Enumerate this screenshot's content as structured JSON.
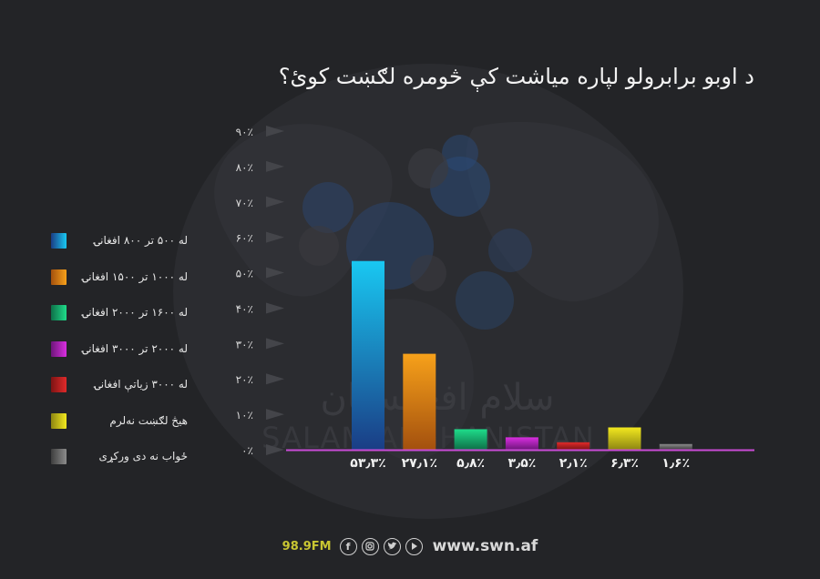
{
  "header": {
    "title": "د اوبو برابرولو لپاره میاشت کې څومره لګښت کوئ؟"
  },
  "watermark": {
    "arabic": "سلام افغانستان",
    "latin": "SALAM AFGHANISTAN"
  },
  "chart_data": {
    "type": "bar",
    "title": "د اوبو برابرولو لپاره میاشت کې څومره لګښت کوئ؟",
    "xlabel": "",
    "ylabel": "",
    "ylim": [
      0,
      90
    ],
    "yticks": [
      {
        "value": 0,
        "label": "۰٪"
      },
      {
        "value": 10,
        "label": "۱۰٪"
      },
      {
        "value": 20,
        "label": "۲۰٪"
      },
      {
        "value": 30,
        "label": "۳۰٪"
      },
      {
        "value": 40,
        "label": "۴۰٪"
      },
      {
        "value": 50,
        "label": "۵۰٪"
      },
      {
        "value": 60,
        "label": "۶۰٪"
      },
      {
        "value": 70,
        "label": "۷۰٪"
      },
      {
        "value": 80,
        "label": "۸۰٪"
      },
      {
        "value": 90,
        "label": "۹۰٪"
      }
    ],
    "grid": false,
    "legend_position": "left",
    "categories": [
      "له ۵۰۰ تر ۸۰۰ افغانۍ",
      "له ۱۰۰۰ تر ۱۵۰۰ افغانۍ",
      "له ۱۶۰۰ تر ۲۰۰۰ افغانۍ",
      "له ۲۰۰۰ تر ۳۰۰۰ افغانۍ",
      "له ۳۰۰۰ زیاتې افغانۍ",
      "هیڅ لګښت نه‌لرم",
      "ځواب نه دی ورکړی"
    ],
    "values": [
      53.3,
      27.1,
      5.8,
      3.5,
      2.1,
      6.3,
      1.6
    ],
    "value_labels": [
      "۵۳٫۳٪",
      "۲۷٫۱٪",
      "۵٫۸٪",
      "۳٫۵٪",
      "۲٫۱٪",
      "۶٫۳٪",
      "۱٫۶٪"
    ],
    "colors": [
      [
        "#19c8f2",
        "#1a3d85"
      ],
      [
        "#f7a11a",
        "#a3500e"
      ],
      [
        "#1fdc8a",
        "#0e7048"
      ],
      [
        "#d92ee0",
        "#6d167a"
      ],
      [
        "#e02a2a",
        "#7e1414"
      ],
      [
        "#f2e81f",
        "#8d8612"
      ],
      [
        "#8c8c8c",
        "#3e3e3e"
      ]
    ]
  },
  "footer": {
    "station": "98.9FM",
    "website": "www.swn.af",
    "social_icons": [
      "facebook-icon",
      "instagram-icon",
      "twitter-icon",
      "youtube-icon"
    ]
  }
}
